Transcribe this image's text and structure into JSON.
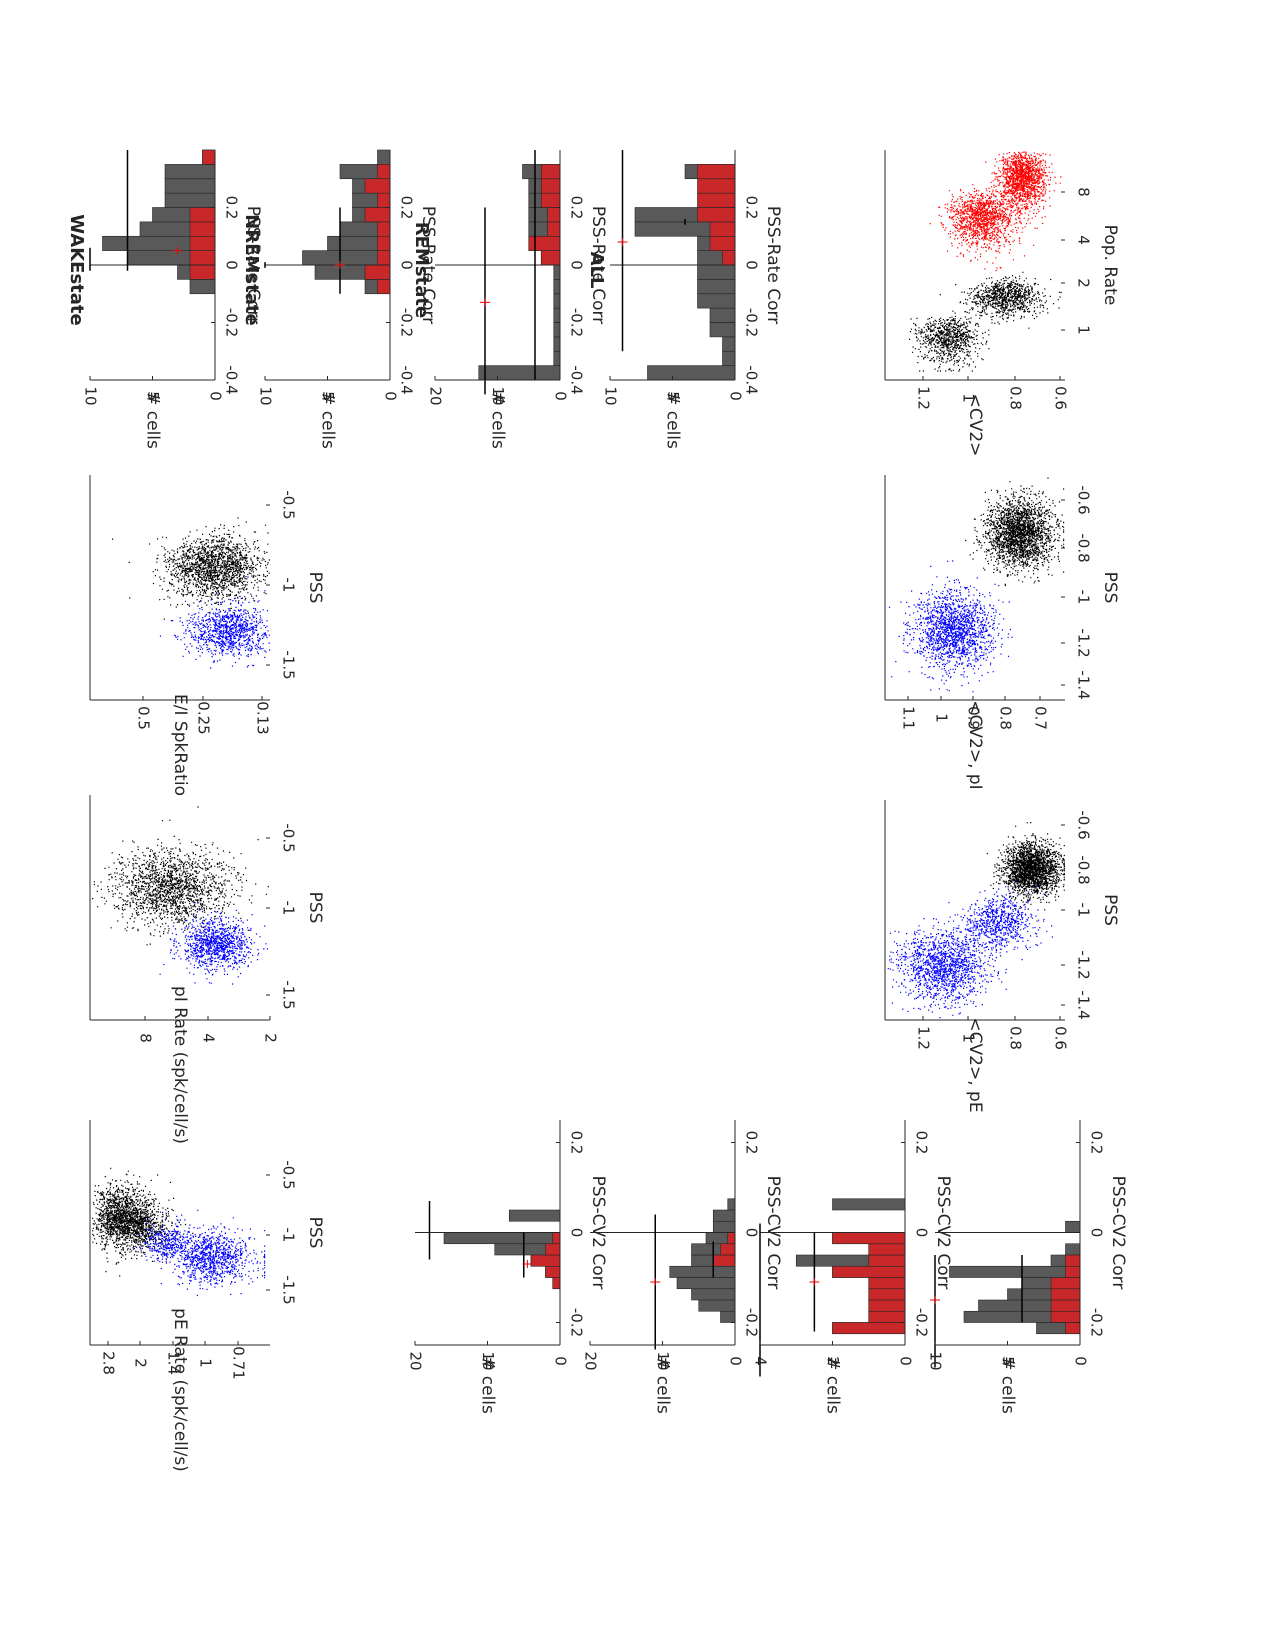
{
  "chart_data": [
    {
      "id": "sc_pE_rate",
      "type": "scatter",
      "xlabel": "PSS",
      "ylabel": "pE Rate (spk/cell/s)",
      "xticks": [
        "-1.5",
        "-1",
        "-0.5"
      ],
      "yticks": [
        "2.8",
        "2",
        "1.4",
        "1",
        "0.71"
      ],
      "series": [
        {
          "color": "#000000",
          "cloud": [
            [
              -0.9,
              2.4,
              0.15,
              0.35,
              1400
            ],
            [
              -1.0,
              2.0,
              0.1,
              0.25,
              500
            ]
          ]
        },
        {
          "color": "#0000ff",
          "cloud": [
            [
              -1.3,
              1.0,
              0.12,
              0.18,
              900
            ],
            [
              -1.15,
              1.5,
              0.1,
              0.2,
              400
            ]
          ]
        }
      ]
    },
    {
      "id": "sc_pI_rate",
      "type": "scatter",
      "xlabel": "PSS",
      "ylabel": "pI Rate (spk/cell/s)",
      "xticks": [
        "-1.5",
        "-1",
        "-0.5"
      ],
      "yticks": [
        "8",
        "4",
        "2"
      ],
      "series": [
        {
          "color": "#000000",
          "cloud": [
            [
              -0.75,
              6.5,
              0.15,
              1.3,
              1700
            ]
          ]
        },
        {
          "color": "#0000ff",
          "cloud": [
            [
              -1.2,
              4.5,
              0.1,
              0.8,
              1000
            ]
          ]
        }
      ]
    },
    {
      "id": "sc_EI_ratio",
      "type": "scatter",
      "xlabel": "PSS",
      "ylabel": "E/I SpkRatio",
      "xticks": [
        "-1.5",
        "-1",
        "-0.5"
      ],
      "yticks": [
        "0.5",
        "0.25",
        "0.13"
      ],
      "series": [
        {
          "color": "#000000",
          "cloud": [
            [
              -0.75,
              0.3,
              0.12,
              0.08,
              1700
            ]
          ]
        },
        {
          "color": "#0000ff",
          "cloud": [
            [
              -1.25,
              0.25,
              0.1,
              0.07,
              1000
            ]
          ]
        }
      ]
    },
    {
      "id": "sc_cv2_pE",
      "type": "scatter",
      "xlabel": "PSS",
      "ylabel": "<CV2>, pE",
      "xticks": [
        "-1.4",
        "-1.2",
        "-1",
        "-0.8",
        "-0.6"
      ],
      "yticks": [
        "1.2",
        "1",
        "0.8",
        "0.6"
      ],
      "series": [
        {
          "color": "#000000",
          "cloud": [
            [
              -0.8,
              0.73,
              0.06,
              0.06,
              2200
            ]
          ]
        },
        {
          "color": "#0000ff",
          "cloud": [
            [
              -1.25,
              1.12,
              0.08,
              0.1,
              1400
            ],
            [
              -1.05,
              0.88,
              0.06,
              0.08,
              700
            ]
          ]
        }
      ]
    },
    {
      "id": "sc_cv2_pI",
      "type": "scatter",
      "xlabel": "PSS",
      "ylabel": "<CV2>, pI",
      "xticks": [
        "-1.4",
        "-1.2",
        "-1",
        "-0.8",
        "-0.6"
      ],
      "yticks": [
        "1.1",
        "1",
        "0.9",
        "0.8",
        "0.7"
      ],
      "series": [
        {
          "color": "#000000",
          "cloud": [
            [
              -0.75,
              0.76,
              0.08,
              0.05,
              2200
            ]
          ]
        },
        {
          "color": "#0000ff",
          "cloud": [
            [
              -1.2,
              0.96,
              0.09,
              0.06,
              1600
            ]
          ]
        }
      ]
    },
    {
      "id": "sc_cv2_poprate",
      "type": "scatter",
      "xlabel": "Pop. Rate",
      "ylabel": "<CV2>",
      "xticks": [
        "1",
        "2",
        "4",
        "8"
      ],
      "yticks": [
        "1.2",
        "1",
        "0.8",
        "0.6"
      ],
      "series": [
        {
          "color": "#000000",
          "cloud": [
            [
              1.1,
              1.1,
              0.15,
              0.07,
              800
            ],
            [
              1.8,
              0.85,
              0.2,
              0.08,
              900
            ]
          ]
        },
        {
          "color": "#ff0000",
          "cloud": [
            [
              4.8,
              0.95,
              0.8,
              0.07,
              1300
            ],
            [
              7.8,
              0.77,
              1.4,
              0.05,
              1500
            ]
          ]
        }
      ]
    },
    {
      "id": "h_cv2_1",
      "type": "bar",
      "title": "",
      "xlabel": "PSS-CV2 Corr",
      "ylabel": "# cells",
      "xticks": [
        "-0.2",
        "0",
        "0.2"
      ],
      "yticks": [
        "0",
        "10",
        "20"
      ],
      "xlim": [
        -0.25,
        0.25
      ],
      "ylim": [
        0,
        20
      ],
      "bin_width": 0.025,
      "gray": {
        "left": [
          -0.25,
          -0.225,
          -0.2,
          -0.175,
          -0.15,
          -0.125,
          -0.1,
          -0.075,
          -0.05,
          -0.025,
          0,
          0.025,
          0.05
        ],
        "values": [
          0,
          0,
          0,
          0,
          0,
          1,
          2,
          4,
          9,
          16,
          0,
          7,
          0
        ]
      },
      "red": {
        "left": [
          -0.25,
          -0.225,
          -0.2,
          -0.175,
          -0.15,
          -0.125,
          -0.1,
          -0.075,
          -0.05,
          -0.025,
          0,
          0.025,
          0.05
        ],
        "values": [
          0,
          0,
          0,
          0,
          0,
          1,
          2,
          4,
          2,
          1,
          0,
          0,
          0
        ]
      },
      "black_marker": {
        "x": -0.05,
        "ci": [
          -0.1,
          0.0
        ],
        "y": 5
      },
      "red_marker": {
        "x": -0.07,
        "y": 4.5
      },
      "black_top_marker": {
        "x": 0.0,
        "ci": [
          -0.06,
          0.07
        ],
        "y": 18
      }
    },
    {
      "id": "h_cv2_2",
      "type": "bar",
      "title": "",
      "xlabel": "PSS-CV2 Corr",
      "ylabel": "# cells",
      "xticks": [
        "-0.2",
        "0",
        "0.2"
      ],
      "yticks": [
        "0",
        "10",
        "20"
      ],
      "xlim": [
        -0.25,
        0.25
      ],
      "ylim": [
        0,
        20
      ],
      "bin_width": 0.025,
      "gray": {
        "left": [
          -0.25,
          -0.225,
          -0.2,
          -0.175,
          -0.15,
          -0.125,
          -0.1,
          -0.075,
          -0.05,
          -0.025,
          0,
          0.025,
          0.05,
          0.075
        ],
        "values": [
          0,
          0,
          2,
          5,
          6,
          8,
          9,
          6,
          6,
          4,
          3,
          3,
          1,
          0
        ]
      },
      "red": {
        "left": [
          -0.25,
          -0.225,
          -0.2,
          -0.175,
          -0.15,
          -0.125,
          -0.1,
          -0.075,
          -0.05,
          -0.025,
          0,
          0.025,
          0.05,
          0.075
        ],
        "values": [
          0,
          0,
          0,
          0,
          0,
          0,
          0,
          3,
          2,
          1,
          0,
          0,
          0,
          0
        ]
      },
      "black_marker": {
        "x": -0.06,
        "ci": [
          -0.1,
          -0.02
        ],
        "y": 3
      },
      "red_marker": {
        "x": -0.11,
        "y": 11
      },
      "black_top_marker": {
        "x": -0.11,
        "ci": [
          -0.26,
          0.04
        ],
        "y": 11
      }
    },
    {
      "id": "h_cv2_3",
      "type": "bar",
      "title": "",
      "xlabel": "PSS-CV2 Corr",
      "ylabel": "# cells",
      "xticks": [
        "-0.2",
        "0",
        "0.2"
      ],
      "yticks": [
        "0",
        "2",
        "4"
      ],
      "xlim": [
        -0.25,
        0.25
      ],
      "ylim": [
        0,
        4
      ],
      "bin_width": 0.025,
      "gray": {
        "left": [
          -0.25,
          -0.225,
          -0.2,
          -0.175,
          -0.15,
          -0.125,
          -0.1,
          -0.075,
          -0.05,
          -0.025,
          0,
          0.025,
          0.05,
          0.075
        ],
        "values": [
          0,
          2,
          1,
          1,
          1,
          1,
          2,
          3,
          1,
          2,
          0,
          0,
          2,
          0
        ]
      },
      "red": {
        "left": [
          -0.25,
          -0.225,
          -0.2,
          -0.175,
          -0.15,
          -0.125,
          -0.1,
          -0.075,
          -0.05,
          -0.025,
          0,
          0.025,
          0.05,
          0.075
        ],
        "values": [
          0,
          2,
          1,
          1,
          1,
          1,
          2,
          1,
          1,
          2,
          0,
          0,
          0,
          0
        ]
      },
      "black_marker": {
        "x": -0.08,
        "ci": [
          -0.22,
          0.0
        ],
        "y": 2.5
      },
      "red_marker": {
        "x": -0.11,
        "y": 2.5
      },
      "black_top_marker": {
        "x": -0.11,
        "ci": [
          -0.32,
          0.02
        ],
        "y": 4
      }
    },
    {
      "id": "h_cv2_4",
      "type": "bar",
      "title": "",
      "xlabel": "PSS-CV2 Corr",
      "ylabel": "# cells",
      "xticks": [
        "-0.2",
        "0",
        "0.2"
      ],
      "yticks": [
        "0",
        "5",
        "10"
      ],
      "xlim": [
        -0.25,
        0.25
      ],
      "ylim": [
        0,
        10
      ],
      "bin_width": 0.025,
      "gray": {
        "left": [
          -0.25,
          -0.225,
          -0.2,
          -0.175,
          -0.15,
          -0.125,
          -0.1,
          -0.075,
          -0.05,
          -0.025,
          0,
          0.025,
          0.05
        ],
        "values": [
          0,
          3,
          8,
          7,
          5,
          4,
          9,
          2,
          1,
          0,
          1,
          0,
          0
        ]
      },
      "red": {
        "left": [
          -0.25,
          -0.225,
          -0.2,
          -0.175,
          -0.15,
          -0.125,
          -0.1,
          -0.075,
          -0.05,
          -0.025,
          0,
          0.025,
          0.05
        ],
        "values": [
          0,
          1,
          2,
          2,
          2,
          2,
          1,
          1,
          0,
          0,
          0,
          0,
          0
        ]
      },
      "black_marker": {
        "x": -0.13,
        "ci": [
          -0.2,
          -0.05
        ],
        "y": 4
      },
      "red_marker": {
        "x": -0.15,
        "y": 10
      },
      "black_top_marker": {
        "x": -0.15,
        "ci": [
          -0.3,
          -0.05
        ],
        "y": 10
      }
    },
    {
      "id": "h_rate_1",
      "type": "bar",
      "title": "WAKEstate",
      "xlabel": "PSS-Rate Corr",
      "ylabel": "# cells",
      "xticks": [
        "-0.4",
        "-0.2",
        "0",
        "0.2"
      ],
      "yticks": [
        "0",
        "5",
        "10"
      ],
      "xlim": [
        -0.4,
        0.4
      ],
      "ylim": [
        0,
        10
      ],
      "bin_width": 0.05,
      "gray": {
        "left": [
          -0.4,
          -0.35,
          -0.3,
          -0.25,
          -0.2,
          -0.15,
          -0.1,
          -0.05,
          0,
          0.05,
          0.1,
          0.15,
          0.2,
          0.25,
          0.3,
          0.35
        ],
        "values": [
          0,
          0,
          0,
          0,
          0,
          0,
          2,
          3,
          7,
          9,
          6,
          5,
          4,
          4,
          4,
          1
        ]
      },
      "red": {
        "left": [
          -0.4,
          -0.35,
          -0.3,
          -0.25,
          -0.2,
          -0.15,
          -0.1,
          -0.05,
          0,
          0.05,
          0.1,
          0.15,
          0.2,
          0.25,
          0.3,
          0.35
        ],
        "values": [
          0,
          0,
          0,
          0,
          0,
          0,
          0,
          2,
          2,
          2,
          2,
          2,
          0,
          0,
          0,
          1
        ]
      },
      "black_marker": {
        "x": 0.1,
        "ci": [
          -0.02,
          0.4
        ],
        "y": 7
      },
      "red_marker": {
        "x": 0.05,
        "y": 3
      },
      "black_top_marker": {
        "x": 0.0,
        "ci": [
          -0.02,
          0.06
        ],
        "y": 10
      }
    },
    {
      "id": "h_rate_2",
      "type": "bar",
      "title": "NREMstate",
      "xlabel": "PSS-Rate Corr",
      "ylabel": "# cells",
      "xticks": [
        "-0.4",
        "-0.2",
        "0",
        "0.2"
      ],
      "yticks": [
        "0",
        "5",
        "10"
      ],
      "xlim": [
        -0.4,
        0.4
      ],
      "ylim": [
        0,
        10
      ],
      "bin_width": 0.05,
      "gray": {
        "left": [
          -0.4,
          -0.35,
          -0.3,
          -0.25,
          -0.2,
          -0.15,
          -0.1,
          -0.05,
          0,
          0.05,
          0.1,
          0.15,
          0.2,
          0.25,
          0.3,
          0.35
        ],
        "values": [
          0,
          0,
          0,
          0,
          0,
          0,
          2,
          6,
          7,
          5,
          4,
          3,
          3,
          3,
          4,
          1
        ]
      },
      "red": {
        "left": [
          -0.4,
          -0.35,
          -0.3,
          -0.25,
          -0.2,
          -0.15,
          -0.1,
          -0.05,
          0,
          0.05,
          0.1,
          0.15,
          0.2,
          0.25,
          0.3,
          0.35
        ],
        "values": [
          0,
          0,
          0,
          0,
          0,
          0,
          1,
          2,
          1,
          1,
          1,
          2,
          1,
          2,
          1,
          0
        ]
      },
      "black_marker": {
        "x": 0.05,
        "ci": [
          -0.1,
          0.2
        ],
        "y": 4
      },
      "red_marker": {
        "x": 0.0,
        "y": 4
      },
      "black_top_marker": {
        "x": 0.0,
        "ci": [
          -0.01,
          0.01
        ],
        "y": 10
      }
    },
    {
      "id": "h_rate_3",
      "type": "bar",
      "title": "REMstate",
      "xlabel": "PSS-Rate Corr",
      "ylabel": "# cells",
      "xticks": [
        "-0.4",
        "-0.2",
        "0",
        "0.2"
      ],
      "yticks": [
        "0",
        "10",
        "20"
      ],
      "xlim": [
        -0.4,
        0.4
      ],
      "ylim": [
        0,
        20
      ],
      "bin_width": 0.05,
      "gray": {
        "left": [
          -0.4,
          -0.35,
          -0.3,
          -0.25,
          -0.2,
          -0.15,
          -0.1,
          -0.05,
          0,
          0.05,
          0.1,
          0.15,
          0.2,
          0.25,
          0.3,
          0.35
        ],
        "values": [
          13,
          1,
          1,
          1,
          1,
          1,
          1,
          1,
          3,
          3,
          5,
          5,
          5,
          5,
          6,
          0
        ]
      },
      "red": {
        "left": [
          -0.4,
          -0.35,
          -0.3,
          -0.25,
          -0.2,
          -0.15,
          -0.1,
          -0.05,
          0,
          0.05,
          0.1,
          0.15,
          0.2,
          0.25,
          0.3,
          0.35
        ],
        "values": [
          0,
          0,
          0,
          0,
          0,
          0,
          0,
          0,
          3,
          5,
          2,
          2,
          3,
          3,
          3,
          0
        ]
      },
      "black_marker": {
        "x": -0.13,
        "ci": [
          -0.45,
          0.2
        ],
        "y": 12
      },
      "red_marker": {
        "x": -0.13,
        "y": 12
      },
      "black_top_marker": {
        "x": -0.4,
        "ci": [
          -0.4,
          0.4
        ],
        "y": 4
      }
    },
    {
      "id": "h_rate_4",
      "type": "bar",
      "title": "ALL",
      "xlabel": "PSS-Rate Corr",
      "ylabel": "# cells",
      "xticks": [
        "-0.4",
        "-0.2",
        "0",
        "0.2"
      ],
      "yticks": [
        "0",
        "5",
        "10"
      ],
      "xlim": [
        -0.4,
        0.4
      ],
      "ylim": [
        0,
        10
      ],
      "bin_width": 0.05,
      "gray": {
        "left": [
          -0.4,
          -0.35,
          -0.3,
          -0.25,
          -0.2,
          -0.15,
          -0.1,
          -0.05,
          0,
          0.05,
          0.1,
          0.15,
          0.2,
          0.25,
          0.3,
          0.35
        ],
        "values": [
          7,
          1,
          1,
          2,
          2,
          3,
          3,
          3,
          3,
          3,
          8,
          8,
          2,
          2,
          4,
          0
        ]
      },
      "red": {
        "left": [
          -0.4,
          -0.35,
          -0.3,
          -0.25,
          -0.2,
          -0.15,
          -0.1,
          -0.05,
          0,
          0.05,
          0.1,
          0.15,
          0.2,
          0.25,
          0.3,
          0.35
        ],
        "values": [
          0,
          0,
          0,
          0,
          0,
          0,
          0,
          0,
          1,
          2,
          2,
          3,
          3,
          3,
          3,
          0
        ]
      },
      "black_marker": {
        "x": 0.0,
        "ci": [
          -0.3,
          0.4
        ],
        "y": 9
      },
      "red_marker": {
        "x": 0.08,
        "y": 9
      },
      "black_top_marker": {
        "x": 0.15,
        "ci": [
          0.14,
          0.16
        ],
        "y": 4
      }
    }
  ]
}
